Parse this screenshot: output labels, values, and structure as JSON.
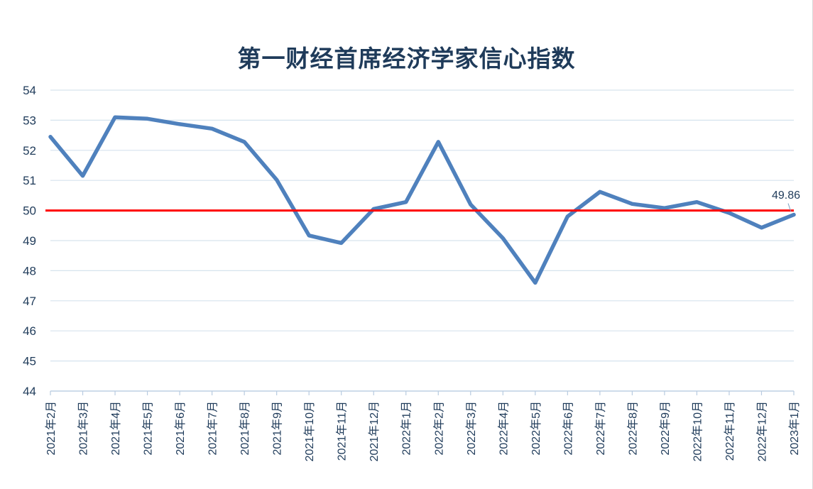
{
  "chart_data": {
    "type": "line",
    "title": "第一财经首席经济学家信心指数",
    "xlabel": "",
    "ylabel": "",
    "ylim": [
      44,
      54
    ],
    "yticks": [
      "44",
      "45",
      "46",
      "47",
      "48",
      "49",
      "50",
      "51",
      "52",
      "53",
      "54"
    ],
    "categories": [
      "2021年2月",
      "2021年3月",
      "2021年4月",
      "2021年5月",
      "2021年6月",
      "2021年7月",
      "2021年8月",
      "2021年9月",
      "2021年10月",
      "2021年11月",
      "2021年12月",
      "2022年1月",
      "2022年2月",
      "2022年3月",
      "2022年4月",
      "2022年5月",
      "2022年6月",
      "2022年7月",
      "2022年8月",
      "2022年9月",
      "2022年10月",
      "2022年11月",
      "2022年12月",
      "2023年1月"
    ],
    "series": [
      {
        "values": [
          52.45,
          51.15,
          53.1,
          53.05,
          52.87,
          52.72,
          52.28,
          51.02,
          49.17,
          48.92,
          50.05,
          50.28,
          52.28,
          50.2,
          49.08,
          47.6,
          49.8,
          50.62,
          50.22,
          50.08,
          50.28,
          49.92,
          49.43,
          49.86
        ],
        "color": "#4f81bd"
      }
    ],
    "reference_line": {
      "y": 50,
      "color": "#ff0000"
    },
    "data_label": {
      "index": 23,
      "text": "49.86"
    },
    "grid": true,
    "legend": "none"
  }
}
